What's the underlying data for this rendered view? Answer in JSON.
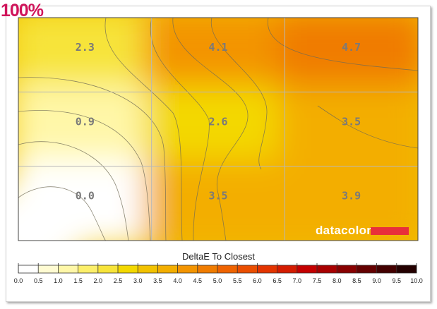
{
  "header": {
    "zoom_label": "100%"
  },
  "brand": {
    "name": "datacolor",
    "accent_color": "#e8303a"
  },
  "chart_data": {
    "type": "heatmap",
    "title": "DeltaE To Closest",
    "grid": {
      "rows": 3,
      "cols": 3
    },
    "cells": [
      [
        "2.3",
        "4.1",
        "4.7"
      ],
      [
        "0.9",
        "2.6",
        "3.5"
      ],
      [
        "0.0",
        "3.5",
        "3.9"
      ]
    ],
    "values": [
      [
        2.3,
        4.1,
        4.7
      ],
      [
        0.9,
        2.6,
        3.5
      ],
      [
        0.0,
        3.5,
        3.9
      ]
    ],
    "colorbar": {
      "ticks": [
        "0.0",
        "0.5",
        "1.0",
        "1.5",
        "2.0",
        "2.5",
        "3.0",
        "3.5",
        "4.0",
        "4.5",
        "5.0",
        "5.5",
        "6.0",
        "6.5",
        "7.0",
        "7.5",
        "8.0",
        "8.5",
        "9.0",
        "9.5",
        "10.0"
      ],
      "range": [
        0,
        10
      ],
      "colors": [
        "#ffffff",
        "#fffbd2",
        "#fff7a8",
        "#fcef6a",
        "#f7e43a",
        "#f3d800",
        "#f2c200",
        "#f3ae00",
        "#f39400",
        "#f07c00",
        "#ef6300",
        "#ea4e00",
        "#e33400",
        "#d41c00",
        "#c40000",
        "#a80000",
        "#880000",
        "#640000",
        "#430000",
        "#240000"
      ]
    },
    "grid_lines": true
  }
}
